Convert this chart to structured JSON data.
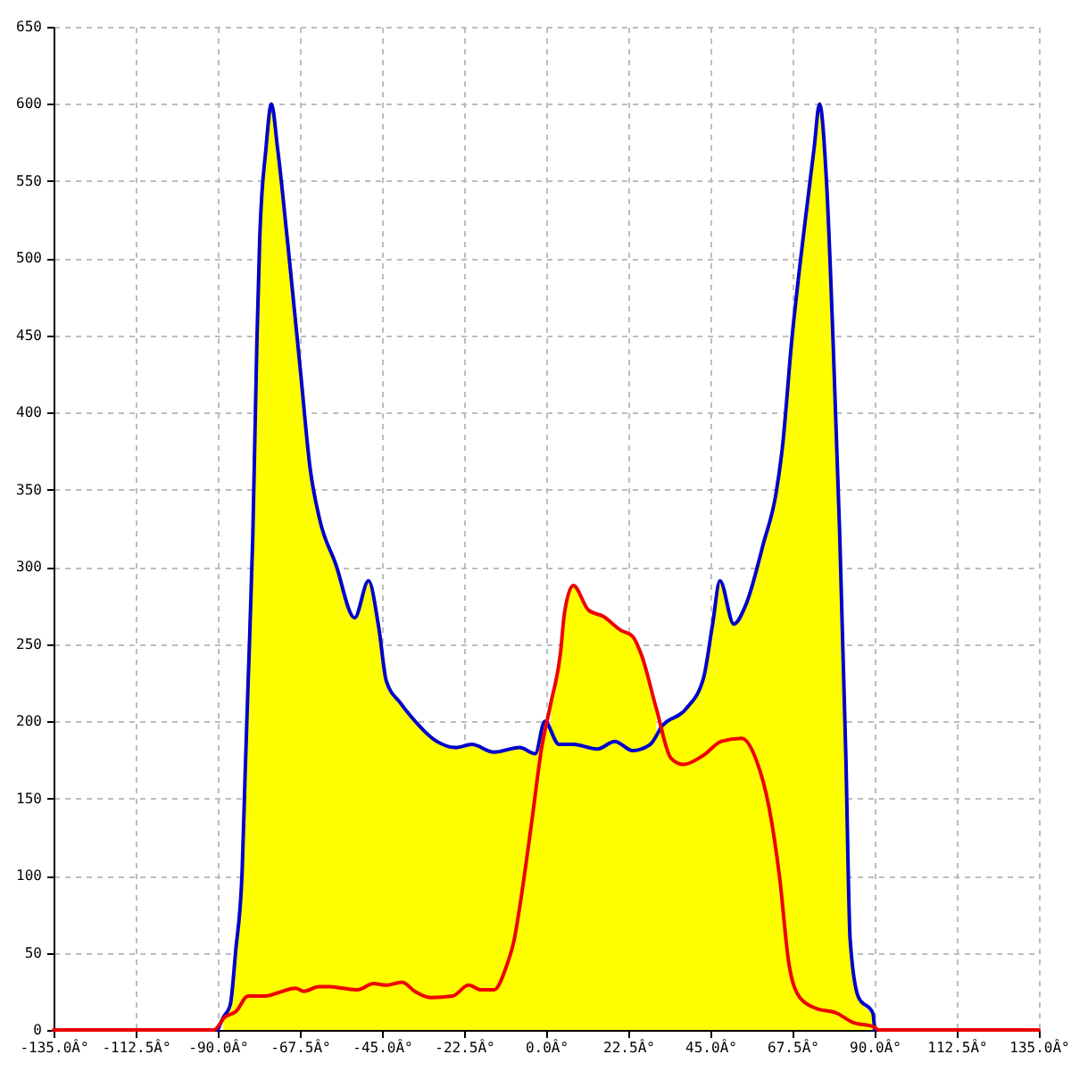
{
  "chart_data": {
    "type": "area",
    "xlim": [
      -135,
      135
    ],
    "ylim": [
      0,
      650
    ],
    "xticks": [
      {
        "value": -135,
        "label": "-135.0Â°"
      },
      {
        "value": -112.5,
        "label": "-112.5Â°"
      },
      {
        "value": -90,
        "label": "-90.0Â°"
      },
      {
        "value": -67.5,
        "label": "-67.5Â°"
      },
      {
        "value": -45,
        "label": "-45.0Â°"
      },
      {
        "value": -22.5,
        "label": "-22.5Â°"
      },
      {
        "value": 0,
        "label": "0.0Â°"
      },
      {
        "value": 22.5,
        "label": "22.5Â°"
      },
      {
        "value": 45,
        "label": "45.0Â°"
      },
      {
        "value": 67.5,
        "label": "67.5Â°"
      },
      {
        "value": 90,
        "label": "90.0Â°"
      },
      {
        "value": 112.5,
        "label": "112.5Â°"
      },
      {
        "value": 135,
        "label": "135.0Â°"
      }
    ],
    "yticks": [
      0,
      50,
      100,
      150,
      200,
      250,
      300,
      350,
      400,
      450,
      500,
      550,
      600,
      650
    ],
    "grid": true,
    "series": [
      {
        "color": "#ffff00",
        "x": [
          1.3,
          3.9,
          5,
          7.4,
          11.6,
          15.6,
          20.4,
          23.7,
          26.1,
          30.2
        ],
        "values": [
          212,
          244,
          270,
          288,
          272,
          268,
          259,
          255,
          243,
          208
        ]
      },
      {
        "color": "#ffff00",
        "x": [
          -88.5,
          -86.6,
          -85.1,
          -83.3,
          -82.5,
          -81.7,
          -80.4,
          -79.3,
          -78.5,
          -76.8,
          -75.3,
          -73.6,
          -70.8,
          -67.3,
          -64.7,
          -62.1,
          -57.7,
          -52.5,
          -48.7,
          -45.9,
          -43.8,
          -40,
          -37,
          -30,
          -24.8,
          -20.4,
          -14.3,
          -7.3,
          -3,
          -0.4,
          3.5,
          7.5,
          14,
          18.8,
          23.7,
          28.5,
          31.8,
          38.3,
          43.1,
          45.6,
          47.6,
          51.4,
          54.8,
          59.5,
          63,
          64.7,
          67.3,
          70.8,
          73.4,
          74.9,
          76.8,
          78.6,
          80.4,
          82.1,
          83.3,
          85.6,
          89.5
        ],
        "values": [
          8,
          16,
          51,
          104,
          166,
          224,
          320,
          444,
          513,
          571,
          600,
          571,
          509,
          426,
          364,
          331,
          302,
          267,
          291,
          261,
          226,
          212,
          203,
          187,
          183,
          185,
          180,
          183,
          179,
          200,
          185,
          185,
          182,
          187,
          181,
          185,
          197,
          208,
          228,
          263,
          291,
          263,
          276,
          315,
          348,
          377,
          447,
          521,
          571,
          600,
          550,
          447,
          323,
          178,
          58,
          21,
          11
        ]
      },
      {
        "type": "line",
        "color": "#0000cc",
        "x": [
          -90,
          -88.5,
          -86.6,
          -85.1,
          -83.3,
          -82.5,
          -81.7,
          -80.4,
          -79.3,
          -78.5,
          -76.8,
          -75.3,
          -73.6,
          -70.8,
          -67.3,
          -64.7,
          -62.1,
          -57.7,
          -52.5,
          -48.7,
          -45.9,
          -43.8,
          -40,
          -37,
          -30,
          -24.8,
          -20.4,
          -14.3,
          -7.3,
          -3,
          -0.4,
          3.5,
          7.5,
          14,
          18.8,
          23.7,
          28.5,
          31.8,
          38.3,
          43.1,
          45.6,
          47.6,
          51.4,
          54.8,
          59.5,
          63,
          64.7,
          67.3,
          70.8,
          73.4,
          74.9,
          76.8,
          78.6,
          80.4,
          82.1,
          83.3,
          85.6,
          89.5,
          90
        ],
        "values": [
          0,
          8,
          16,
          51,
          104,
          166,
          224,
          320,
          444,
          513,
          571,
          600,
          571,
          509,
          426,
          364,
          331,
          302,
          267,
          291,
          261,
          226,
          212,
          203,
          187,
          183,
          185,
          180,
          183,
          179,
          200,
          185,
          185,
          182,
          187,
          181,
          185,
          197,
          208,
          228,
          263,
          291,
          263,
          276,
          315,
          348,
          377,
          447,
          521,
          571,
          600,
          550,
          447,
          323,
          178,
          58,
          21,
          11,
          0
        ]
      },
      {
        "type": "line",
        "color": "#ee0000",
        "x": [
          -135,
          -91,
          -88.2,
          -85,
          -81.7,
          -76.8,
          -73.6,
          -68.7,
          -66.4,
          -62.3,
          -59.5,
          -55.8,
          -51.7,
          -47.3,
          -43.8,
          -39.5,
          -36,
          -31.7,
          -25.6,
          -21.3,
          -17.8,
          -14.3,
          -10.8,
          -8.8,
          -7.3,
          -3.9,
          -1.3,
          1.3,
          3.9,
          5,
          7.4,
          11.6,
          15.6,
          20.4,
          23.7,
          26.1,
          30.2,
          34.2,
          37.5,
          43.1,
          48,
          53.6,
          57.7,
          61,
          63.9,
          66.5,
          69.5,
          73.9,
          79.5,
          83.9,
          89.9,
          91,
          135
        ],
        "values": [
          0,
          0,
          8,
          12,
          22,
          22,
          24,
          27,
          25,
          28,
          28,
          27,
          26,
          30,
          29,
          31,
          25,
          21,
          22,
          29,
          26,
          26,
          42,
          58,
          79,
          136,
          182,
          212,
          244,
          270,
          288,
          272,
          268,
          259,
          255,
          243,
          208,
          176,
          172,
          178,
          187,
          189,
          174,
          145,
          100,
          43,
          21,
          14,
          11,
          5,
          2,
          0,
          0
        ]
      }
    ]
  }
}
